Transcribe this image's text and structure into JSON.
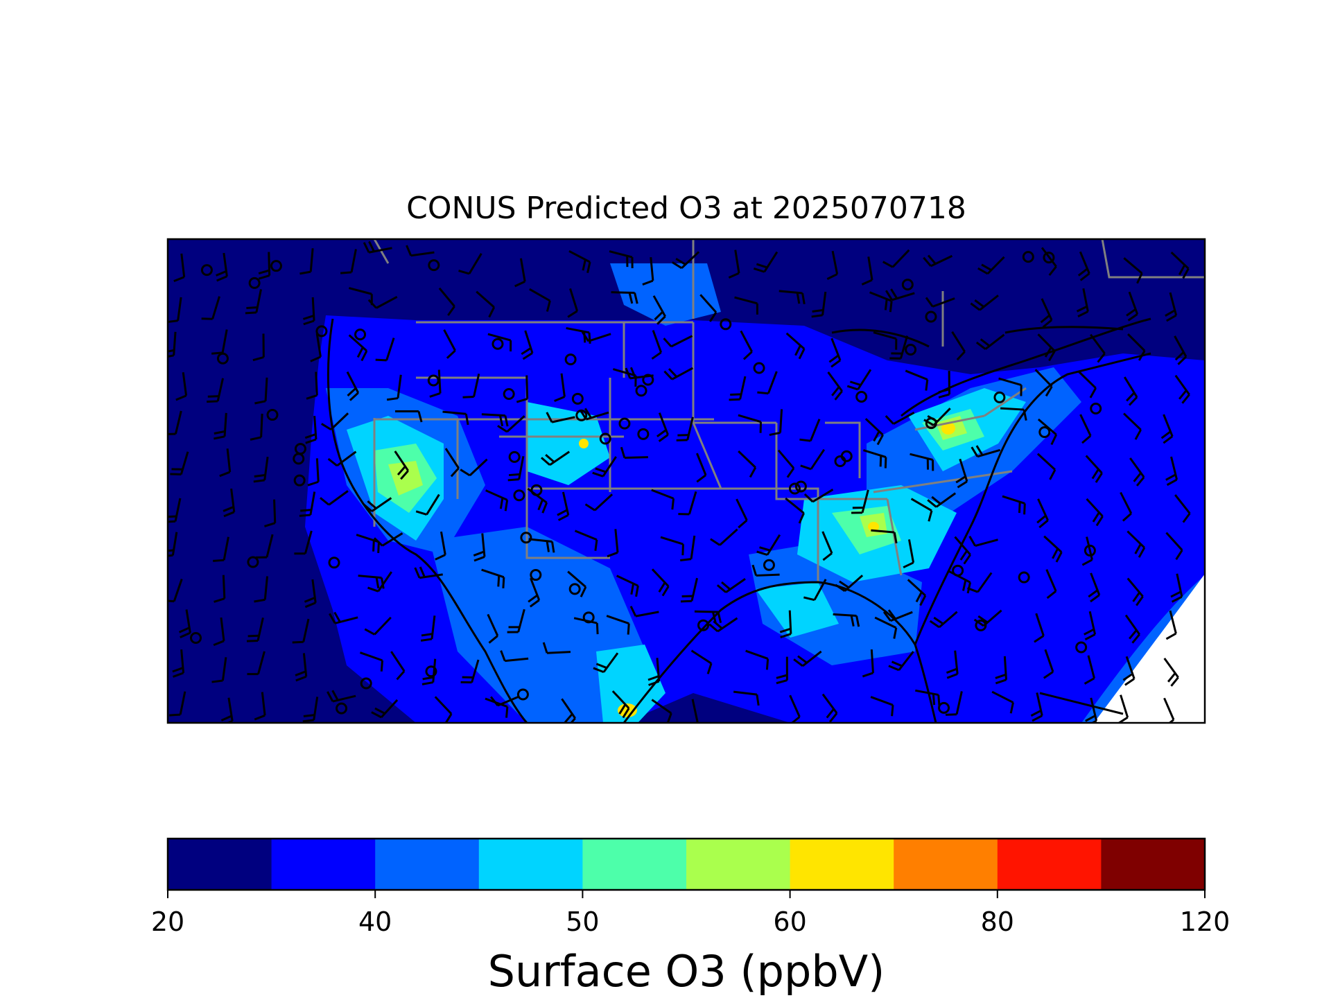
{
  "title": "CONUS Predicted O3 at 2025070718",
  "colorbar": {
    "label": "Surface O3 (ppbV)",
    "tick_labels": [
      "20",
      "40",
      "50",
      "60",
      "80",
      "120"
    ],
    "bins": [
      {
        "from": 20,
        "to": 30,
        "color": "#00007f"
      },
      {
        "from": 30,
        "to": 40,
        "color": "#0000ff"
      },
      {
        "from": 40,
        "to": 45,
        "color": "#0063ff"
      },
      {
        "from": 45,
        "to": 50,
        "color": "#00d4ff"
      },
      {
        "from": 50,
        "to": 55,
        "color": "#4dffaa"
      },
      {
        "from": 55,
        "to": 60,
        "color": "#aaff4d"
      },
      {
        "from": 60,
        "to": 70,
        "color": "#ffe500"
      },
      {
        "from": 70,
        "to": 80,
        "color": "#ff7f00"
      },
      {
        "from": 80,
        "to": 100,
        "color": "#ff1400"
      },
      {
        "from": 100,
        "to": 120,
        "color": "#7f0000"
      }
    ]
  },
  "map": {
    "field": "surface ozone (ppbV)",
    "colors": {
      "ocean": "#00007f",
      "background_land": "#0000ff",
      "mid": "#0063ff",
      "elevated": "#00d4ff",
      "high": "#4dffaa",
      "very_high": "#aaff4d",
      "peak": "#ffe500",
      "state_borders": "#808080",
      "coastlines": "#000000",
      "wind_barbs": "#000000"
    },
    "overlays": [
      "state-borders",
      "coastlines",
      "wind-barbs",
      "calm-wind-circles"
    ]
  }
}
